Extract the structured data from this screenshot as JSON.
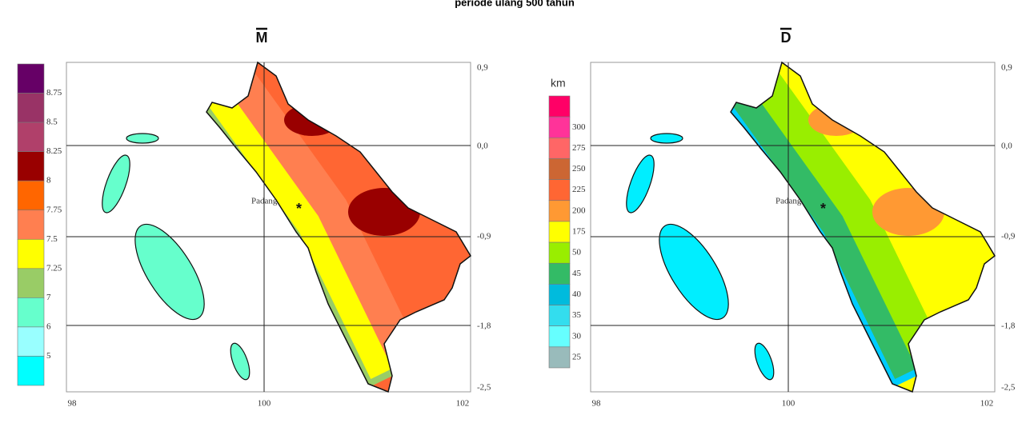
{
  "title": "periode ulang 500 tahun",
  "panels": [
    {
      "title": "M",
      "unit": null,
      "place": "Padang",
      "legend": {
        "colors": [
          "#660066",
          "#993366",
          "#b0406a",
          "#990000",
          "#ff6600",
          "#ff7f50",
          "#ffff00",
          "#99cc66",
          "#66ffcc",
          "#99ffff",
          "#00ffff"
        ],
        "labels": [
          "8.75",
          "8.5",
          "8.25",
          "8",
          "7.75",
          "7.5",
          "7.25",
          "7",
          "6",
          "5"
        ]
      },
      "x_labels": [
        "98",
        "100",
        "102"
      ],
      "y_labels": [
        "0,9",
        "0,0",
        "-0,9",
        "-1,8",
        "-2,5"
      ],
      "bands": [
        "#ff6633",
        "#99cc66",
        "#ffff00",
        "#ff7f50",
        "#990000"
      ]
    },
    {
      "title": "D",
      "unit": "km",
      "place": "Padang",
      "legend": {
        "colors": [
          "#ff0066",
          "#ff3399",
          "#ff6666",
          "#cc6633",
          "#ff6633",
          "#ff9933",
          "#ffff00",
          "#99ee00",
          "#33bb66",
          "#00bbdd",
          "#33ddee",
          "#66ffff",
          "#99bbbb"
        ],
        "labels": [
          "300",
          "275",
          "250",
          "225",
          "200",
          "175",
          "50",
          "45",
          "40",
          "35",
          "30",
          "25"
        ]
      },
      "x_labels": [
        "98",
        "100",
        "102"
      ],
      "y_labels": [
        "0,9",
        "0,0",
        "-0,9",
        "-1,8",
        "-2,5"
      ],
      "bands": [
        "#ffff00",
        "#00ccff",
        "#33bb66",
        "#99ee00",
        "#ff9933"
      ]
    }
  ]
}
